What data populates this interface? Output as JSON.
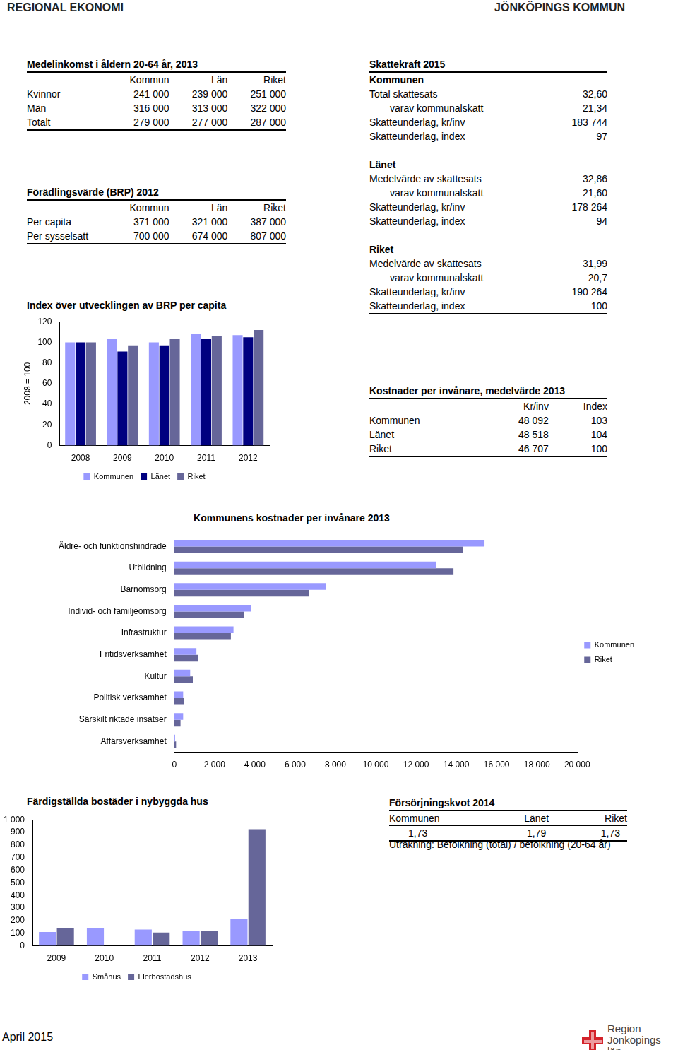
{
  "header": {
    "left": "REGIONAL EKONOMI",
    "right": "JÖNKÖPINGS KOMMUN"
  },
  "medelinkomst": {
    "title": "Medelinkomst i åldern 20-64 år, 2013",
    "columns": [
      "Kommun",
      "Län",
      "Riket"
    ],
    "rows": [
      [
        "Kvinnor",
        "241 000",
        "239 000",
        "251 000"
      ],
      [
        "Män",
        "316 000",
        "313 000",
        "322 000"
      ],
      [
        "Totalt",
        "279 000",
        "277 000",
        "287 000"
      ]
    ]
  },
  "foradlingsvarde": {
    "title": "Förädlingsvärde (BRP) 2012",
    "columns": [
      "Kommun",
      "Län",
      "Riket"
    ],
    "rows": [
      [
        "Per capita",
        "371 000",
        "321 000",
        "387 000"
      ],
      [
        "Per sysselsatt",
        "700 000",
        "674 000",
        "807 000"
      ]
    ]
  },
  "skattekraft": {
    "title": "Skattekraft 2015",
    "groups": [
      {
        "name": "Kommunen",
        "rows": [
          [
            "Total skattesats",
            "32,60"
          ],
          [
            "varav kommunalskatt",
            "21,34"
          ],
          [
            "Skatteunderlag, kr/inv",
            "183 744"
          ],
          [
            "Skatteunderlag, index",
            "97"
          ]
        ]
      },
      {
        "name": "Länet",
        "rows": [
          [
            "Medelvärde av skattesats",
            "32,86"
          ],
          [
            "varav kommunalskatt",
            "21,60"
          ],
          [
            "Skatteunderlag, kr/inv",
            "178 264"
          ],
          [
            "Skatteunderlag, index",
            "94"
          ]
        ]
      },
      {
        "name": "Riket",
        "rows": [
          [
            "Medelvärde av skattesats",
            "31,99"
          ],
          [
            "varav kommunalskatt",
            "20,7"
          ],
          [
            "Skatteunderlag, kr/inv",
            "190 264"
          ],
          [
            "Skatteunderlag, index",
            "100"
          ]
        ]
      }
    ]
  },
  "kostnader": {
    "title": "Kostnader per invånare, medelvärde 2013",
    "columns": [
      "Kr/inv",
      "Index"
    ],
    "rows": [
      [
        "Kommunen",
        "48 092",
        "103"
      ],
      [
        "Länet",
        "48 518",
        "104"
      ],
      [
        "Riket",
        "46 707",
        "100"
      ]
    ]
  },
  "forsorjningskvot": {
    "title": "Försörjningskvot 2014",
    "columns": [
      "Kommunen",
      "Länet",
      "Riket"
    ],
    "rows": [
      [
        "1,73",
        "1,79",
        "1,73"
      ]
    ],
    "note": "Uträkning: Befolkning (total) / befolkning (20-64 år)"
  },
  "chart_data": [
    {
      "type": "bar",
      "title": "Index över utvecklingen av BRP per capita",
      "y_label": "2008 = 100",
      "categories": [
        "2008",
        "2009",
        "2010",
        "2011",
        "2012"
      ],
      "series": [
        {
          "name": "Kommunen",
          "color": "#9999ff",
          "values": [
            100,
            103,
            100,
            108,
            107
          ]
        },
        {
          "name": "Länet",
          "color": "#000080",
          "values": [
            100,
            91,
            97,
            103,
            105
          ]
        },
        {
          "name": "Riket",
          "color": "#666699",
          "values": [
            100,
            97,
            103,
            106,
            112
          ]
        }
      ],
      "ylim": [
        0,
        120
      ],
      "yticks": [
        0,
        20,
        40,
        60,
        80,
        100,
        120
      ],
      "grid": false,
      "legend": "bottom"
    },
    {
      "type": "bar",
      "title": "Kommunens kostnader per invånare 2013",
      "orientation": "horizontal",
      "categories": [
        "Äldre- och funktionshindrade",
        "Utbildning",
        "Barnomsorg",
        "Individ- och familjeomsorg",
        "Infrastruktur",
        "Fritidsverksamhet",
        "Kultur",
        "Politisk verksamhet",
        "Särskilt riktade insatser",
        "Affärsverksamhet"
      ],
      "series": [
        {
          "name": "Kommunen",
          "color": "#9999ff",
          "values": [
            15400,
            12980,
            7540,
            3820,
            2940,
            1100,
            790,
            440,
            440,
            40
          ]
        },
        {
          "name": "Riket",
          "color": "#666699",
          "values": [
            14340,
            13860,
            6670,
            3460,
            2810,
            1180,
            920,
            480,
            310,
            90
          ]
        }
      ],
      "xlim": [
        0,
        20000
      ],
      "xticks": [
        0,
        {
          "value": 2000,
          "label": "2 000"
        },
        {
          "value": 4000,
          "label": "4 000"
        },
        {
          "value": 6000,
          "label": "6 000"
        },
        {
          "value": 8000,
          "label": "8 000"
        },
        {
          "value": 10000,
          "label": "10 000"
        },
        {
          "value": 12000,
          "label": "12 000"
        },
        {
          "value": 14000,
          "label": "14 000"
        },
        {
          "value": 16000,
          "label": "16 000"
        },
        {
          "value": 18000,
          "label": "18 000"
        },
        {
          "value": 20000,
          "label": "20 000"
        }
      ],
      "grid": false,
      "legend": "right"
    },
    {
      "type": "bar",
      "title": "Färdigställda bostäder i nybyggda hus",
      "categories": [
        "2009",
        "2010",
        "2011",
        "2012",
        "2013"
      ],
      "series": [
        {
          "name": "Småhus",
          "color": "#9999ff",
          "values": [
            110,
            140,
            130,
            120,
            215
          ]
        },
        {
          "name": "Flerbostadshus",
          "color": "#666699",
          "values": [
            140,
            0,
            105,
            115,
            925
          ]
        }
      ],
      "ylim": [
        0,
        1000
      ],
      "yticks": [
        0,
        100,
        200,
        300,
        400,
        500,
        600,
        700,
        800,
        900,
        {
          "value": 1000,
          "label": "1 000"
        }
      ],
      "grid": false,
      "legend": "bottom"
    }
  ],
  "footer": {
    "date": "April 2015",
    "logo": [
      "Region",
      "Jönköpings län"
    ]
  }
}
